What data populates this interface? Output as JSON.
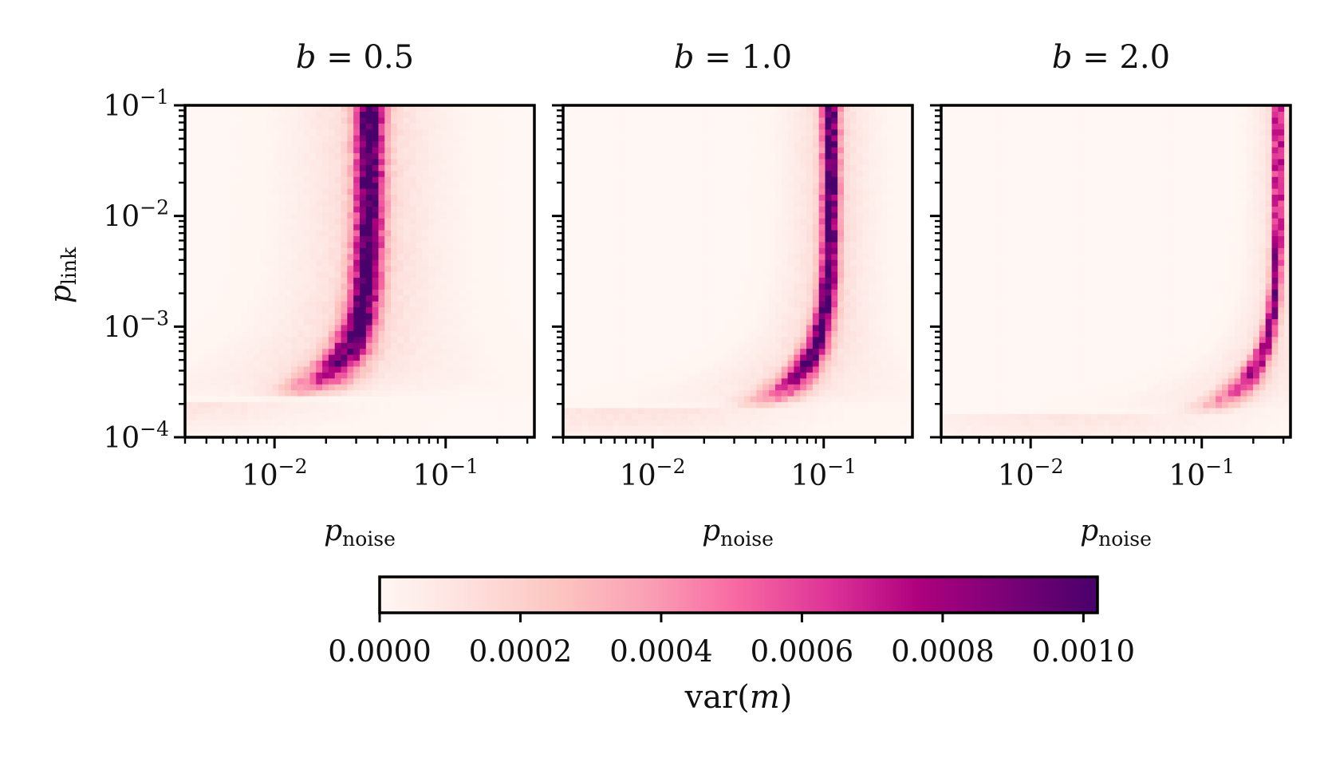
{
  "chart_data": {
    "type": "heatmap",
    "colormap": "RdPu",
    "colors": {
      "low": "#fff7f3",
      "mid": "#f768a1",
      "high": "#49006a",
      "frame": "#000000"
    },
    "x_var": "p",
    "x_sub": "noise",
    "y_var": "p",
    "y_sub": "link",
    "x_scale": "log",
    "y_scale": "log",
    "xlim": [
      0.003,
      0.33
    ],
    "ylim": [
      0.0001,
      0.1
    ],
    "x_major_ticks": [
      {
        "value": 0.01,
        "base": "10",
        "exp": "−2"
      },
      {
        "value": 0.1,
        "base": "10",
        "exp": "−1"
      }
    ],
    "y_major_ticks": [
      {
        "value": 0.1,
        "base": "10",
        "exp": "−1"
      },
      {
        "value": 0.01,
        "base": "10",
        "exp": "−2"
      },
      {
        "value": 0.001,
        "base": "10",
        "exp": "−3"
      },
      {
        "value": 0.0001,
        "base": "10",
        "exp": "−4"
      }
    ],
    "grid": false,
    "panels": [
      {
        "b_var": "b",
        "b_eq": " = 0.5",
        "b": 0.5,
        "ridge_p_noise": 0.036,
        "saturation_p_link": 0.00022,
        "peak_var_m": 0.00095,
        "ridge_width_decades": 0.085
      },
      {
        "b_var": "b",
        "b_eq": " = 1.0",
        "b": 1.0,
        "ridge_p_noise": 0.11,
        "saturation_p_link": 0.00018,
        "peak_var_m": 0.00092,
        "ridge_width_decades": 0.05
      },
      {
        "b_var": "b",
        "b_eq": " = 2.0",
        "b": 2.0,
        "ridge_p_noise": 0.28,
        "saturation_p_link": 0.00016,
        "peak_var_m": 0.00078,
        "ridge_width_decades": 0.03
      }
    ],
    "colorbar": {
      "label_text": "var(",
      "label_var": "m",
      "label_close": ")",
      "range": [
        0,
        0.00102
      ],
      "ticks": [
        {
          "value": 0.0,
          "label": "0.0000"
        },
        {
          "value": 0.0002,
          "label": "0.0002"
        },
        {
          "value": 0.0004,
          "label": "0.0004"
        },
        {
          "value": 0.0006,
          "label": "0.0006"
        },
        {
          "value": 0.0008,
          "label": "0.0008"
        },
        {
          "value": 0.001,
          "label": "0.0010"
        }
      ]
    }
  }
}
